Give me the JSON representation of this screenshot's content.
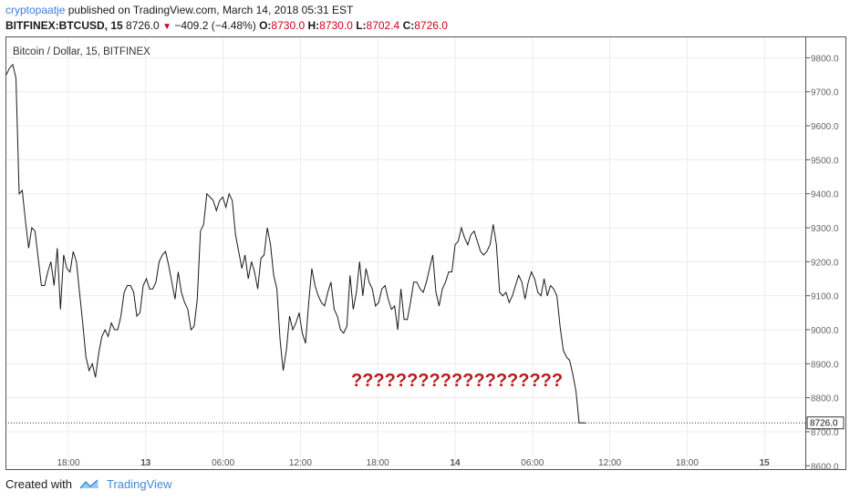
{
  "header": {
    "author": "cryptopaatje",
    "published": "published on TradingView.com, March 14, 2018 05:31 EST"
  },
  "ticker": {
    "symbol": "BITFINEX:BTCUSD, 15",
    "last": "8726.0",
    "change": "−409.2 (−4.48%)",
    "o_label": "O:",
    "o": "8730.0",
    "h_label": "H:",
    "h": "8730.0",
    "l_label": "L:",
    "l": "8702.4",
    "c_label": "C:",
    "c": "8726.0",
    "colors": {
      "down": "#d0021b",
      "line": "#1a1a1a",
      "annotation": "#b71c1c"
    }
  },
  "footer": {
    "created_with": "Created with",
    "brand": "TradingView"
  },
  "chart_data": {
    "type": "line",
    "title": "Bitcoin / Dollar, 15, BITFINEX",
    "ylim": [
      8590,
      9860
    ],
    "y_ticks": [
      "8600.0",
      "8700.0",
      "8800.0",
      "8900.0",
      "9000.0",
      "9100.0",
      "9200.0",
      "9300.0",
      "9400.0",
      "9500.0",
      "9600.0",
      "9700.0",
      "9800.0"
    ],
    "y_tick_values": [
      8600,
      8700,
      8800,
      8900,
      9000,
      9100,
      9200,
      9300,
      9400,
      9500,
      9600,
      9700,
      9800
    ],
    "x_ticks": [
      "18:00",
      "13",
      "06:00",
      "12:00",
      "18:00",
      "14",
      "06:00",
      "12:00",
      "18:00",
      "15"
    ],
    "x_ticks_bold": [
      false,
      true,
      false,
      false,
      false,
      true,
      false,
      false,
      false,
      true
    ],
    "last_price": 8726.0,
    "last_price_label": "8726.0",
    "annotation": "???????????????????",
    "series": [
      {
        "values": [
          9750,
          9770,
          9780,
          9740,
          9400,
          9410,
          9320,
          9240,
          9300,
          9290,
          9210,
          9130,
          9130,
          9170,
          9200,
          9130,
          9240,
          9060,
          9220,
          9180,
          9170,
          9230,
          9200,
          9110,
          9020,
          8920,
          8880,
          8900,
          8860,
          8930,
          8980,
          9000,
          8980,
          9020,
          9000,
          9000,
          9040,
          9110,
          9130,
          9130,
          9110,
          9040,
          9050,
          9130,
          9150,
          9120,
          9120,
          9140,
          9200,
          9220,
          9230,
          9190,
          9140,
          9090,
          9170,
          9110,
          9080,
          9060,
          9000,
          9010,
          9090,
          9290,
          9310,
          9400,
          9390,
          9380,
          9350,
          9380,
          9390,
          9360,
          9400,
          9380,
          9280,
          9230,
          9180,
          9220,
          9150,
          9200,
          9170,
          9120,
          9210,
          9220,
          9300,
          9250,
          9160,
          9120,
          8970,
          8880,
          8940,
          9040,
          9000,
          9020,
          9050,
          8990,
          8960,
          9080,
          9180,
          9130,
          9100,
          9080,
          9070,
          9110,
          9140,
          9060,
          9040,
          9000,
          8990,
          9010,
          9160,
          9060,
          9110,
          9200,
          9100,
          9180,
          9140,
          9120,
          9070,
          9080,
          9120,
          9130,
          9090,
          9060,
          9070,
          9000,
          9120,
          9030,
          9030,
          9080,
          9140,
          9140,
          9120,
          9110,
          9140,
          9180,
          9220,
          9110,
          9070,
          9120,
          9140,
          9170,
          9170,
          9250,
          9260,
          9300,
          9270,
          9250,
          9280,
          9290,
          9260,
          9230,
          9220,
          9230,
          9250,
          9310,
          9250,
          9110,
          9100,
          9110,
          9080,
          9100,
          9130,
          9160,
          9140,
          9090,
          9140,
          9170,
          9150,
          9110,
          9100,
          9150,
          9100,
          9130,
          9120,
          9100,
          9010,
          8940,
          8920,
          8910,
          8870,
          8820,
          8726,
          8726,
          8726
        ]
      }
    ]
  }
}
